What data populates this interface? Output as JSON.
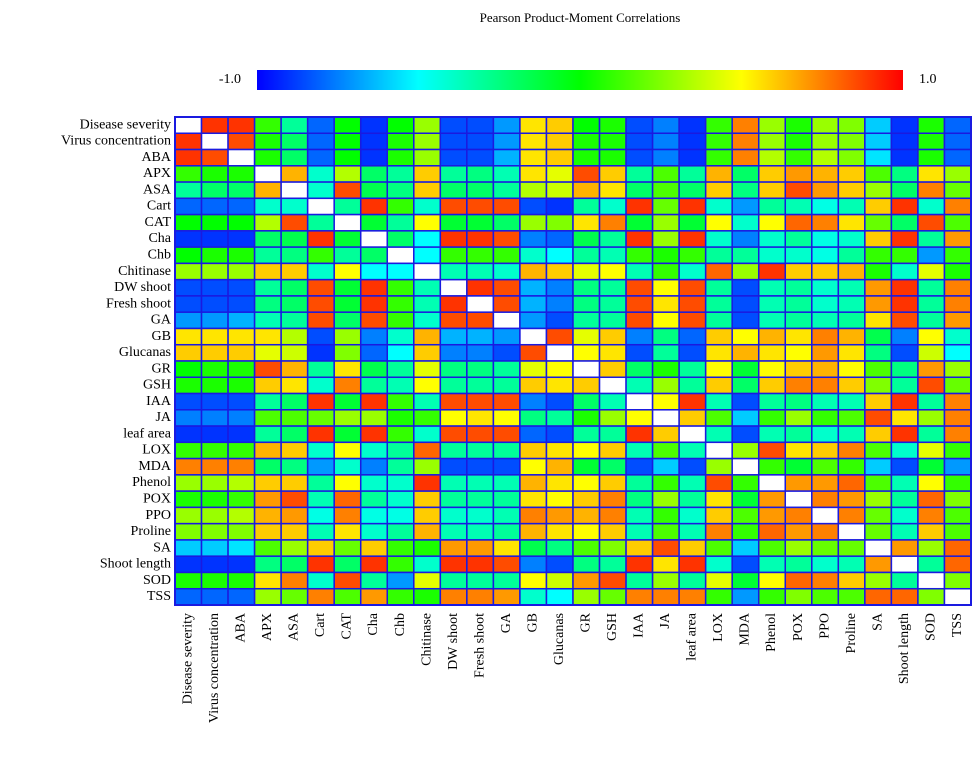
{
  "chart_data": {
    "type": "heatmap",
    "title": "Pearson Product-Moment Correlations",
    "categories": [
      "Disease severity",
      "Virus concentration",
      "ABA",
      "APX",
      "ASA",
      "Cart",
      "CAT",
      "Cha",
      "Chb",
      "Chitinase",
      "DW shoot",
      "Fresh shoot",
      "GA",
      "GB",
      "Glucanas",
      "GR",
      "GSH",
      "IAA",
      "JA",
      "leaf area",
      "LOX",
      "MDA",
      "Phenol",
      "POX",
      "PPO",
      "Proline",
      "SA",
      "Shoot length",
      "SOD",
      "TSS"
    ],
    "z": [
      [
        1,
        0.9,
        0.9,
        0.1,
        -0.3,
        -0.8,
        0,
        -0.9,
        0,
        0.3,
        -0.85,
        -0.85,
        -0.7,
        0.55,
        0.6,
        0,
        0.05,
        -0.85,
        -0.75,
        -0.9,
        0.1,
        0.75,
        0.3,
        0.05,
        0.3,
        0.25,
        -0.6,
        -0.9,
        0.05,
        -0.8
      ],
      [
        0.9,
        1,
        0.85,
        0.05,
        -0.2,
        -0.8,
        0,
        -0.9,
        0.05,
        0.3,
        -0.85,
        -0.85,
        -0.7,
        0.55,
        0.6,
        0.05,
        0.05,
        -0.85,
        -0.75,
        -0.9,
        0.1,
        0.75,
        0.3,
        0.05,
        0.3,
        0.25,
        -0.6,
        -0.9,
        0.05,
        -0.8
      ],
      [
        0.9,
        0.85,
        1,
        0.05,
        -0.2,
        -0.8,
        0,
        -0.9,
        0.05,
        0.3,
        -0.85,
        -0.85,
        -0.65,
        0.55,
        0.6,
        0.05,
        0.05,
        -0.85,
        -0.75,
        -0.9,
        0.1,
        0.75,
        0.35,
        0.1,
        0.35,
        0.25,
        -0.55,
        -0.9,
        0.05,
        -0.8
      ],
      [
        0.1,
        0.05,
        0.05,
        1,
        0.65,
        -0.4,
        0.35,
        -0.2,
        -0.3,
        0.6,
        -0.3,
        -0.25,
        -0.35,
        0.55,
        0.45,
        0.85,
        0.6,
        -0.3,
        0.15,
        -0.3,
        0.65,
        -0.2,
        0.6,
        0.7,
        0.65,
        0.6,
        0.15,
        -0.25,
        0.55,
        0.3
      ],
      [
        -0.3,
        -0.2,
        -0.2,
        0.65,
        1,
        -0.4,
        0.85,
        -0.15,
        -0.25,
        0.6,
        -0.2,
        -0.2,
        -0.3,
        0.35,
        0.4,
        0.65,
        0.55,
        -0.2,
        0.15,
        -0.2,
        0.6,
        -0.25,
        0.6,
        0.85,
        0.7,
        0.6,
        0.3,
        -0.2,
        0.75,
        0.2
      ],
      [
        -0.8,
        -0.8,
        -0.8,
        -0.4,
        -0.4,
        1,
        -0.3,
        0.9,
        0.1,
        -0.4,
        0.85,
        0.85,
        0.85,
        -0.85,
        -0.9,
        -0.3,
        -0.4,
        0.9,
        0.2,
        0.9,
        -0.4,
        -0.7,
        -0.3,
        -0.35,
        -0.45,
        -0.35,
        0.6,
        0.9,
        -0.4,
        0.75
      ],
      [
        0,
        0,
        0,
        0.35,
        0.85,
        -0.3,
        1,
        -0.1,
        -0.3,
        0.5,
        -0.1,
        -0.1,
        -0.2,
        0.3,
        0.25,
        0.55,
        0.75,
        -0.1,
        0.3,
        -0.1,
        0.5,
        -0.4,
        0.5,
        0.8,
        0.75,
        0.55,
        0.2,
        -0.2,
        0.85,
        0.15
      ],
      [
        -0.9,
        -0.9,
        -0.9,
        -0.2,
        -0.15,
        0.9,
        -0.1,
        1,
        -0.2,
        -0.5,
        0.9,
        0.9,
        0.85,
        -0.75,
        -0.8,
        -0.15,
        -0.3,
        0.9,
        0.3,
        0.9,
        -0.4,
        -0.75,
        -0.4,
        -0.3,
        -0.45,
        -0.4,
        0.6,
        0.9,
        -0.3,
        0.7
      ],
      [
        0,
        0.05,
        0.05,
        -0.3,
        -0.25,
        0.1,
        -0.3,
        -0.2,
        1,
        -0.5,
        0.1,
        0.1,
        0.1,
        -0.4,
        -0.5,
        -0.3,
        -0.35,
        0.1,
        0.05,
        0.1,
        -0.3,
        -0.3,
        -0.4,
        -0.4,
        -0.45,
        -0.3,
        0.1,
        0.1,
        -0.7,
        0.1
      ],
      [
        0.3,
        0.3,
        0.3,
        0.6,
        0.6,
        -0.4,
        0.5,
        -0.5,
        -0.5,
        1,
        -0.35,
        -0.35,
        -0.4,
        0.65,
        0.6,
        0.45,
        0.5,
        -0.35,
        0.1,
        -0.4,
        0.8,
        0.3,
        0.9,
        0.6,
        0.6,
        0.65,
        0.05,
        -0.4,
        0.45,
        0.05
      ],
      [
        -0.85,
        -0.85,
        -0.85,
        -0.3,
        -0.2,
        0.85,
        -0.1,
        0.9,
        0.1,
        -0.35,
        1,
        0.9,
        0.85,
        -0.65,
        -0.75,
        -0.25,
        -0.3,
        0.85,
        0.5,
        0.85,
        -0.3,
        -0.85,
        -0.35,
        -0.3,
        -0.4,
        -0.35,
        0.7,
        0.9,
        -0.3,
        0.75
      ],
      [
        -0.85,
        -0.85,
        -0.85,
        -0.25,
        -0.2,
        0.85,
        -0.1,
        0.9,
        0.1,
        -0.35,
        0.9,
        1,
        0.85,
        -0.65,
        -0.75,
        -0.25,
        -0.3,
        0.85,
        0.55,
        0.85,
        -0.3,
        -0.85,
        -0.35,
        -0.3,
        -0.4,
        -0.35,
        0.7,
        0.9,
        -0.3,
        0.75
      ],
      [
        -0.7,
        -0.7,
        -0.65,
        -0.35,
        -0.3,
        0.85,
        -0.2,
        0.85,
        0.1,
        -0.4,
        0.85,
        0.85,
        1,
        -0.7,
        -0.85,
        -0.3,
        -0.3,
        0.85,
        0.5,
        0.85,
        -0.3,
        -0.85,
        -0.35,
        -0.3,
        -0.35,
        -0.3,
        0.55,
        0.85,
        -0.3,
        0.7
      ],
      [
        0.55,
        0.55,
        0.55,
        0.55,
        0.35,
        -0.85,
        0.3,
        -0.75,
        -0.4,
        0.65,
        -0.65,
        -0.65,
        -0.7,
        1,
        0.85,
        0.45,
        0.6,
        -0.75,
        -0.25,
        -0.8,
        0.6,
        0.5,
        0.65,
        0.55,
        0.75,
        0.65,
        -0.15,
        -0.75,
        0.5,
        -0.4
      ],
      [
        0.6,
        0.6,
        0.6,
        0.45,
        0.4,
        -0.9,
        0.25,
        -0.8,
        -0.5,
        0.6,
        -0.75,
        -0.75,
        -0.85,
        0.85,
        1,
        0.5,
        0.55,
        -0.85,
        -0.3,
        -0.85,
        0.55,
        0.65,
        0.55,
        0.5,
        0.7,
        0.55,
        -0.25,
        -0.85,
        0.4,
        -0.5
      ],
      [
        0,
        0.05,
        0.05,
        0.85,
        0.65,
        -0.3,
        0.55,
        -0.15,
        -0.3,
        0.45,
        -0.25,
        -0.25,
        -0.3,
        0.45,
        0.5,
        1,
        0.6,
        -0.2,
        0.05,
        -0.3,
        0.5,
        -0.1,
        0.5,
        0.6,
        0.65,
        0.5,
        0.15,
        -0.25,
        0.7,
        0.3
      ],
      [
        0.05,
        0.05,
        0.05,
        0.6,
        0.55,
        -0.4,
        0.75,
        -0.3,
        -0.35,
        0.5,
        -0.3,
        -0.3,
        -0.3,
        0.6,
        0.55,
        0.6,
        1,
        -0.35,
        0.3,
        -0.3,
        0.6,
        -0.2,
        0.6,
        0.75,
        0.75,
        0.6,
        0.25,
        -0.3,
        0.85,
        0.2
      ],
      [
        -0.85,
        -0.85,
        -0.85,
        -0.3,
        -0.2,
        0.9,
        -0.1,
        0.9,
        0.1,
        -0.35,
        0.85,
        0.85,
        0.85,
        -0.75,
        -0.85,
        -0.2,
        -0.35,
        1,
        0.5,
        0.9,
        -0.35,
        -0.85,
        -0.3,
        -0.25,
        -0.35,
        -0.35,
        0.6,
        0.9,
        -0.3,
        0.75
      ],
      [
        -0.75,
        -0.75,
        -0.75,
        0.15,
        0.15,
        0.2,
        0.3,
        0.3,
        0.05,
        0.1,
        0.5,
        0.55,
        0.5,
        -0.25,
        -0.3,
        0.05,
        0.3,
        0.5,
        1,
        0.6,
        0.15,
        -0.6,
        0.1,
        0.3,
        0.1,
        0.15,
        0.85,
        0.55,
        0.3,
        0.75
      ],
      [
        -0.9,
        -0.9,
        -0.9,
        -0.3,
        -0.2,
        0.9,
        -0.1,
        0.9,
        0.1,
        -0.4,
        0.85,
        0.85,
        0.85,
        -0.8,
        -0.85,
        -0.3,
        -0.3,
        0.9,
        0.6,
        1,
        -0.35,
        -0.85,
        -0.35,
        -0.3,
        -0.4,
        -0.35,
        0.6,
        0.9,
        -0.3,
        0.75
      ],
      [
        0.1,
        0.1,
        0.1,
        0.65,
        0.6,
        -0.4,
        0.5,
        -0.4,
        -0.3,
        0.8,
        -0.3,
        -0.3,
        -0.3,
        0.6,
        0.55,
        0.5,
        0.6,
        -0.35,
        0.15,
        -0.35,
        1,
        0.3,
        0.85,
        0.55,
        0.6,
        0.75,
        0.15,
        -0.4,
        0.45,
        0.1
      ],
      [
        0.75,
        0.75,
        0.75,
        -0.2,
        -0.25,
        -0.7,
        -0.4,
        -0.75,
        -0.3,
        0.3,
        -0.85,
        -0.85,
        -0.85,
        0.5,
        0.65,
        -0.1,
        -0.2,
        -0.85,
        -0.6,
        -0.85,
        0.3,
        1,
        0.1,
        -0.1,
        0.15,
        0.1,
        -0.6,
        -0.85,
        -0.1,
        -0.7
      ],
      [
        0.3,
        0.3,
        0.35,
        0.6,
        0.6,
        -0.3,
        0.5,
        -0.4,
        -0.4,
        0.9,
        -0.35,
        -0.35,
        -0.35,
        0.65,
        0.55,
        0.5,
        0.6,
        -0.3,
        0.1,
        -0.35,
        0.85,
        0.1,
        1,
        0.7,
        0.7,
        0.8,
        0.15,
        -0.35,
        0.5,
        0.1
      ],
      [
        0.05,
        0.05,
        0.1,
        0.7,
        0.85,
        -0.35,
        0.8,
        -0.3,
        -0.4,
        0.6,
        -0.3,
        -0.3,
        -0.3,
        0.55,
        0.5,
        0.6,
        0.75,
        -0.25,
        0.3,
        -0.3,
        0.55,
        -0.1,
        0.7,
        1,
        0.75,
        0.7,
        0.3,
        -0.3,
        0.8,
        0.25
      ],
      [
        0.3,
        0.3,
        0.35,
        0.65,
        0.7,
        -0.45,
        0.75,
        -0.45,
        -0.45,
        0.6,
        -0.4,
        -0.4,
        -0.35,
        0.75,
        0.7,
        0.65,
        0.75,
        -0.35,
        0.1,
        -0.4,
        0.6,
        0.15,
        0.7,
        0.75,
        1,
        0.75,
        0.2,
        -0.4,
        0.75,
        0.15
      ],
      [
        0.25,
        0.25,
        0.25,
        0.6,
        0.6,
        -0.35,
        0.55,
        -0.4,
        -0.3,
        0.65,
        -0.35,
        -0.35,
        -0.3,
        0.65,
        0.55,
        0.5,
        0.6,
        -0.35,
        0.15,
        -0.35,
        0.75,
        0.1,
        0.8,
        0.7,
        0.75,
        1,
        0.2,
        -0.35,
        0.6,
        0.15
      ],
      [
        -0.6,
        -0.6,
        -0.55,
        0.15,
        0.3,
        0.6,
        0.2,
        0.6,
        0.1,
        0.05,
        0.7,
        0.7,
        0.55,
        -0.15,
        -0.25,
        0.15,
        0.25,
        0.6,
        0.85,
        0.6,
        0.15,
        -0.6,
        0.15,
        0.3,
        0.2,
        0.2,
        1,
        0.7,
        0.3,
        0.8
      ],
      [
        -0.9,
        -0.9,
        -0.9,
        -0.25,
        -0.2,
        0.9,
        -0.2,
        0.9,
        0.1,
        -0.4,
        0.9,
        0.9,
        0.85,
        -0.75,
        -0.85,
        -0.25,
        -0.3,
        0.9,
        0.55,
        0.9,
        -0.4,
        -0.85,
        -0.35,
        -0.3,
        -0.4,
        -0.35,
        0.7,
        1,
        -0.3,
        0.8
      ],
      [
        0.05,
        0.05,
        0.05,
        0.55,
        0.75,
        -0.4,
        0.85,
        -0.3,
        -0.7,
        0.45,
        -0.3,
        -0.3,
        -0.3,
        0.5,
        0.4,
        0.7,
        0.85,
        -0.3,
        0.3,
        -0.3,
        0.45,
        -0.1,
        0.5,
        0.8,
        0.75,
        0.6,
        0.3,
        -0.3,
        1,
        0.25
      ],
      [
        -0.8,
        -0.8,
        -0.8,
        0.3,
        0.2,
        0.75,
        0.15,
        0.7,
        0.1,
        0.05,
        0.75,
        0.75,
        0.7,
        -0.4,
        -0.5,
        0.3,
        0.2,
        0.75,
        0.75,
        0.75,
        0.1,
        -0.7,
        0.1,
        0.25,
        0.15,
        0.15,
        0.8,
        0.8,
        0.25,
        1
      ]
    ],
    "zlim": [
      -1,
      1
    ],
    "zticks": [
      {
        "value": -1,
        "label": "-1.0"
      },
      {
        "value": 1,
        "label": "1.0"
      }
    ],
    "colormap": [
      "#0000ff",
      "#00ffff",
      "#00ff00",
      "#ffff00",
      "#ff0000"
    ],
    "diagonal_color": "#ffffff",
    "cell_border_color": "#1a1ae0"
  }
}
